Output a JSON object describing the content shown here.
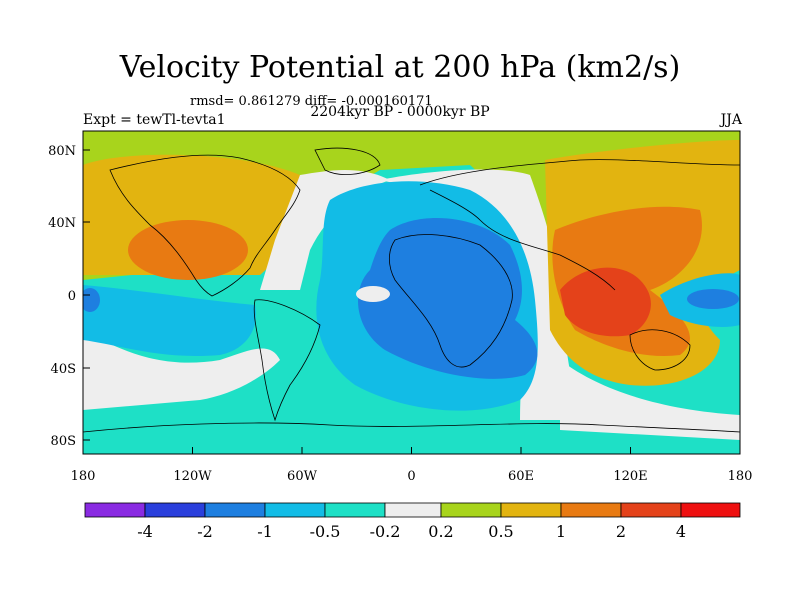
{
  "title": "Velocity Potential at 200 hPa (km2/s)",
  "stats": "rmsd= 0.861279 diff= -0.000160171",
  "experiment": "Expt = tewTl-tevta1",
  "period": "2204kyr BP - 0000kyr BP",
  "season": "JJA",
  "x_axis": {
    "ticks": [
      "180",
      "120W",
      "60W",
      "0",
      "60E",
      "120E",
      "180"
    ]
  },
  "y_axis": {
    "ticks": [
      "80N",
      "40N",
      "0",
      "40S",
      "80S"
    ]
  },
  "colorbar": {
    "colors": [
      "#8a2be2",
      "#2a3fdc",
      "#1e7fe0",
      "#12bce6",
      "#1ee0c6",
      "#eeeeee",
      "#a8d41c",
      "#e2b410",
      "#e87a12",
      "#e4421a",
      "#ee1010"
    ],
    "labels": [
      "-4",
      "-2",
      "-1",
      "-0.5",
      "-0.2",
      "0.2",
      "0.5",
      "1",
      "2",
      "4"
    ]
  },
  "map_colors": {
    "teal": "#1ee0c6",
    "light_blue": "#12bce6",
    "blue": "#1e7fe0",
    "gray": "#eeeeee",
    "green": "#a8d41c",
    "gold": "#e2b410",
    "orange": "#e87a12",
    "red_orange": "#e4421a"
  }
}
